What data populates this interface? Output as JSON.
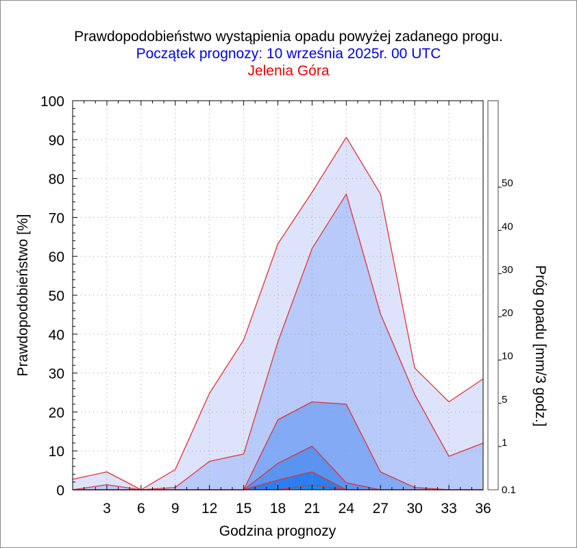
{
  "titles": {
    "line1": "Prawdopodobieństwo wystąpienia opadu powyżej zadanego progu.",
    "line2": "Początek prognozy: 10 września 2025r. 00 UTC",
    "line3": "Jelenia Góra"
  },
  "chart_data": {
    "type": "area",
    "xlabel": "Godzina prognozy",
    "ylabel": "Prawdopodobieństwo [%]",
    "colorbar_label": "Próg opadu [mm/3 godz.]",
    "xlim": [
      0,
      36
    ],
    "ylim": [
      0,
      100
    ],
    "x_ticks": [
      3,
      6,
      9,
      12,
      15,
      18,
      21,
      24,
      27,
      30,
      33,
      36
    ],
    "y_ticks": [
      0,
      10,
      20,
      30,
      40,
      50,
      60,
      70,
      80,
      90,
      100
    ],
    "grid": true,
    "x": [
      0,
      3,
      6,
      9,
      12,
      15,
      18,
      21,
      24,
      27,
      30,
      33,
      36
    ],
    "series": [
      {
        "name": "0.1",
        "color": "#dde3fb",
        "values": [
          2.7,
          4.6,
          0,
          5.2,
          24.8,
          38.5,
          63.2,
          76.5,
          90.6,
          76.0,
          31.3,
          22.6,
          28.5
        ]
      },
      {
        "name": "1",
        "color": "#b8cafa",
        "values": [
          0,
          1.3,
          0,
          0.6,
          7.3,
          9.2,
          38.0,
          62.0,
          76.0,
          45.2,
          24.5,
          8.6,
          12.0
        ]
      },
      {
        "name": "5",
        "color": "#83aaf5",
        "values": [
          0,
          0,
          0,
          0,
          0,
          0,
          18.0,
          22.6,
          22.0,
          4.6,
          0.6,
          0,
          0
        ]
      },
      {
        "name": "10",
        "color": "#5a94ef",
        "values": [
          0,
          0,
          0,
          0,
          0,
          0,
          6.8,
          11.2,
          1.8,
          0,
          0,
          0,
          0
        ]
      },
      {
        "name": "20",
        "color": "#2a7ff0",
        "values": [
          0,
          0,
          0,
          0,
          0,
          0,
          2.5,
          4.6,
          0,
          0,
          0,
          0,
          0
        ]
      },
      {
        "name": "30",
        "color": "#0c8ff2",
        "values": [
          0,
          0,
          0,
          0,
          0,
          0,
          0,
          1.2,
          0,
          0,
          0,
          0,
          0
        ]
      }
    ],
    "colorbar": {
      "levels": [
        0.1,
        1,
        5,
        10,
        20,
        30,
        40,
        50
      ],
      "labels": [
        "0.1",
        "1",
        "5",
        "10",
        "20",
        "30",
        "40",
        "50"
      ],
      "colors": [
        "#eef0fc",
        "#dde3fb",
        "#b8cafa",
        "#83aaf5",
        "#5a94ef",
        "#0c8ff2",
        "#2a7ff0",
        "#1a67e0",
        "#0d4fc4"
      ]
    }
  }
}
